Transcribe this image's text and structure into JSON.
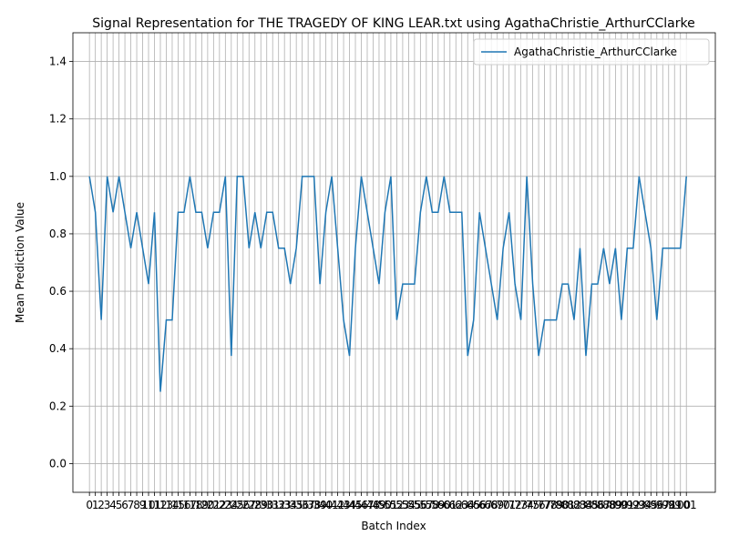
{
  "chart_data": {
    "type": "line",
    "title": "Signal Representation for THE TRAGEDY OF KING LEAR.txt using AgathaChristie_ArthurCClarke",
    "xlabel": "Batch Index",
    "ylabel": "Mean Prediction Value",
    "x": [
      0,
      1,
      2,
      3,
      4,
      5,
      6,
      7,
      8,
      9,
      10,
      11,
      12,
      13,
      14,
      15,
      16,
      17,
      18,
      19,
      20,
      21,
      22,
      23,
      24,
      25,
      26,
      27,
      28,
      29,
      30,
      31,
      32,
      33,
      34,
      35,
      36,
      37,
      38,
      39,
      40,
      41,
      42,
      43,
      44,
      45,
      46,
      47,
      48,
      49,
      50,
      51,
      52,
      53,
      54,
      55,
      56,
      57,
      58,
      59,
      60,
      61,
      62,
      63,
      64,
      65,
      66,
      67,
      68,
      69,
      70,
      71,
      72,
      73,
      74,
      75,
      76,
      77,
      78,
      79,
      80,
      81,
      82,
      83,
      84,
      85,
      86,
      87,
      88,
      89,
      90,
      91,
      92,
      93,
      94,
      95,
      96,
      97,
      98,
      99,
      100,
      101
    ],
    "series": [
      {
        "name": "AgathaChristie_ArthurCClarke",
        "color": "#1f77b4",
        "values": [
          1.0,
          0.875,
          0.5,
          1.0,
          0.875,
          1.0,
          0.875,
          0.75,
          0.875,
          0.75,
          0.625,
          0.875,
          0.25,
          0.5,
          0.5,
          0.875,
          0.875,
          1.0,
          0.875,
          0.875,
          0.75,
          0.875,
          0.875,
          1.0,
          0.375,
          1.0,
          1.0,
          0.75,
          0.875,
          0.75,
          0.875,
          0.875,
          0.75,
          0.75,
          0.625,
          0.75,
          1.0,
          1.0,
          1.0,
          0.625,
          0.875,
          1.0,
          0.75,
          0.5,
          0.375,
          0.75,
          1.0,
          0.875,
          0.75,
          0.625,
          0.875,
          1.0,
          0.5,
          0.625,
          0.625,
          0.625,
          0.875,
          1.0,
          0.875,
          0.875,
          1.0,
          0.875,
          0.875,
          0.875,
          0.375,
          0.5,
          0.875,
          0.75,
          0.625,
          0.5,
          0.75,
          0.875,
          0.625,
          0.5,
          1.0,
          0.625,
          0.375,
          0.5,
          0.5,
          0.5,
          0.625,
          0.625,
          0.5,
          0.75,
          0.375,
          0.625,
          0.625,
          0.75,
          0.625,
          0.75,
          0.5,
          0.75,
          0.75,
          1.0,
          0.875,
          0.75,
          0.5,
          0.75,
          0.75,
          0.75,
          0.75,
          1.0
        ]
      }
    ],
    "xlim": [
      -2.8,
      105.9
    ],
    "xticks": [
      0,
      1,
      2,
      3,
      4,
      5,
      6,
      7,
      8,
      9,
      10,
      11,
      12,
      13,
      14,
      15,
      16,
      17,
      18,
      19,
      20,
      21,
      22,
      23,
      24,
      25,
      26,
      27,
      28,
      29,
      30,
      31,
      32,
      33,
      34,
      35,
      36,
      37,
      38,
      39,
      40,
      41,
      42,
      43,
      44,
      45,
      46,
      47,
      48,
      49,
      50,
      51,
      52,
      53,
      54,
      55,
      56,
      57,
      58,
      59,
      60,
      61,
      62,
      63,
      64,
      65,
      66,
      67,
      68,
      69,
      70,
      71,
      72,
      73,
      74,
      75,
      76,
      77,
      78,
      79,
      80,
      81,
      82,
      83,
      84,
      85,
      86,
      87,
      88,
      89,
      90,
      91,
      92,
      93,
      94,
      95,
      96,
      97,
      98,
      99,
      100,
      101
    ],
    "ylim": [
      -0.1,
      1.5
    ],
    "yticks": [
      {
        "value": 0,
        "label": "0.0"
      },
      0.2,
      0.4,
      0.6,
      0.8,
      {
        "value": 1,
        "label": "1.0"
      },
      1.2,
      1.4
    ],
    "grid": true,
    "legend": "upper right"
  }
}
